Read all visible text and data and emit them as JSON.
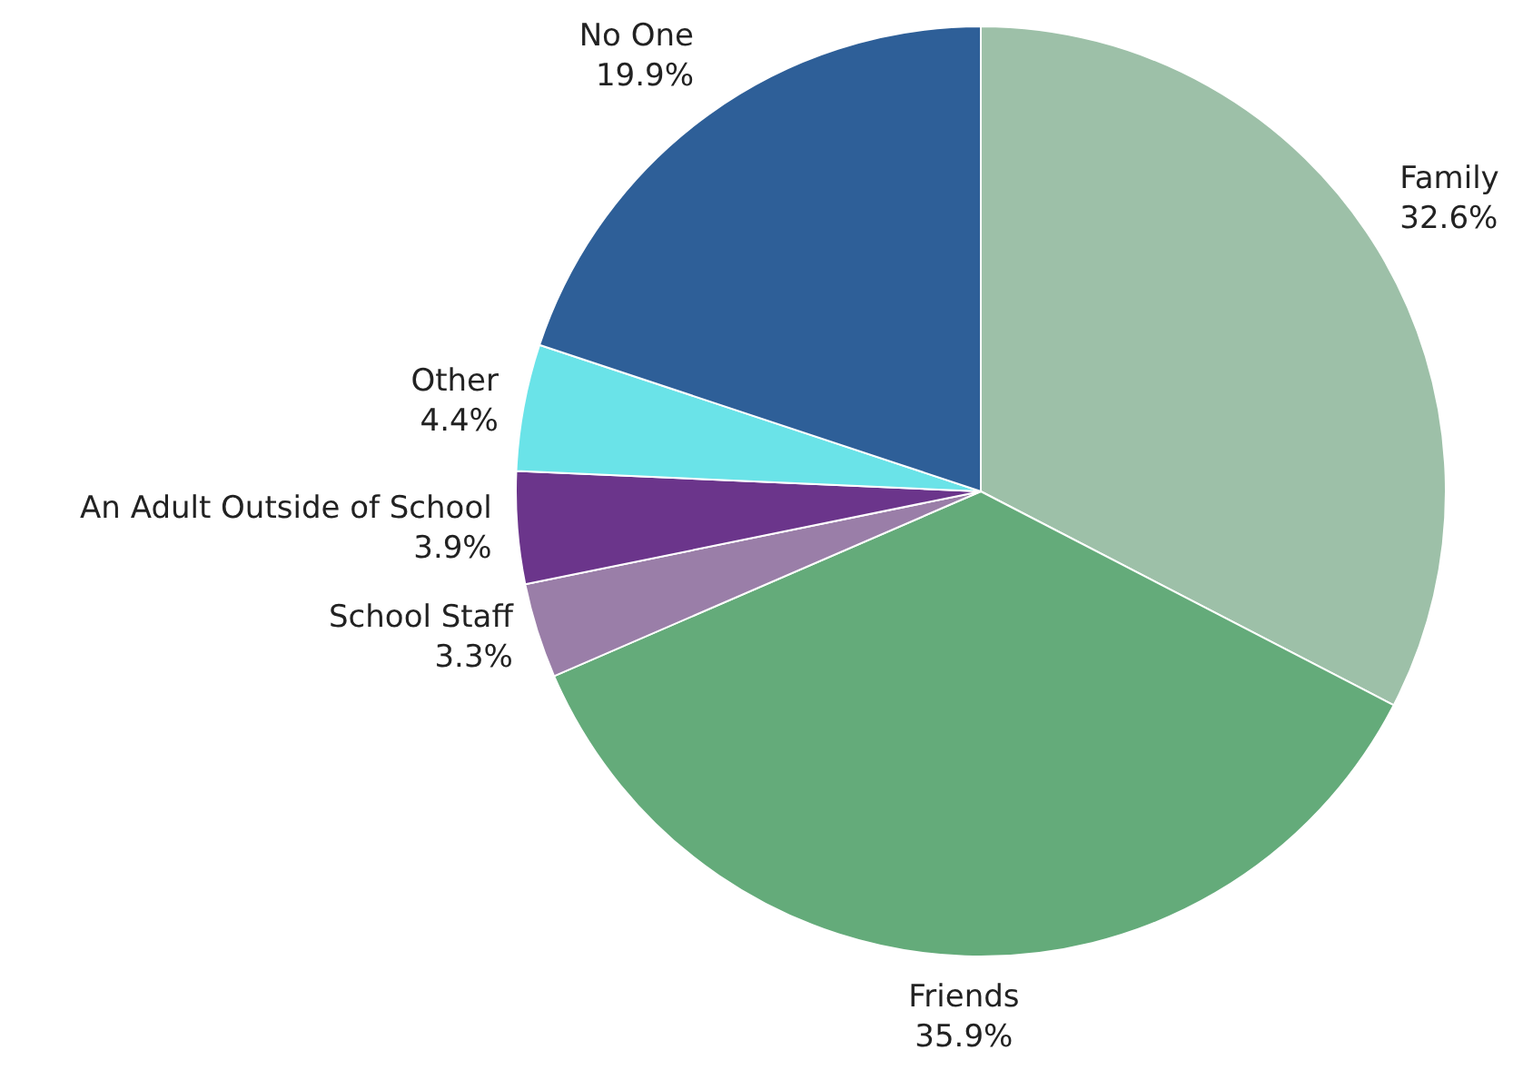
{
  "chart_data": {
    "type": "pie",
    "categories": [
      "Family",
      "Friends",
      "School Staff",
      "An Adult Outside of School",
      "Other",
      "No One"
    ],
    "values": [
      32.6,
      35.9,
      3.3,
      3.9,
      4.4,
      19.9
    ],
    "colors": [
      "#9dc0a8",
      "#64ab7a",
      "#9a7ea8",
      "#6b358b",
      "#6ae3e8",
      "#2e5f98"
    ],
    "value_labels": [
      "32.6%",
      "35.9%",
      "3.3%",
      "3.9%",
      "4.4%",
      "19.9%"
    ],
    "legend": false
  }
}
